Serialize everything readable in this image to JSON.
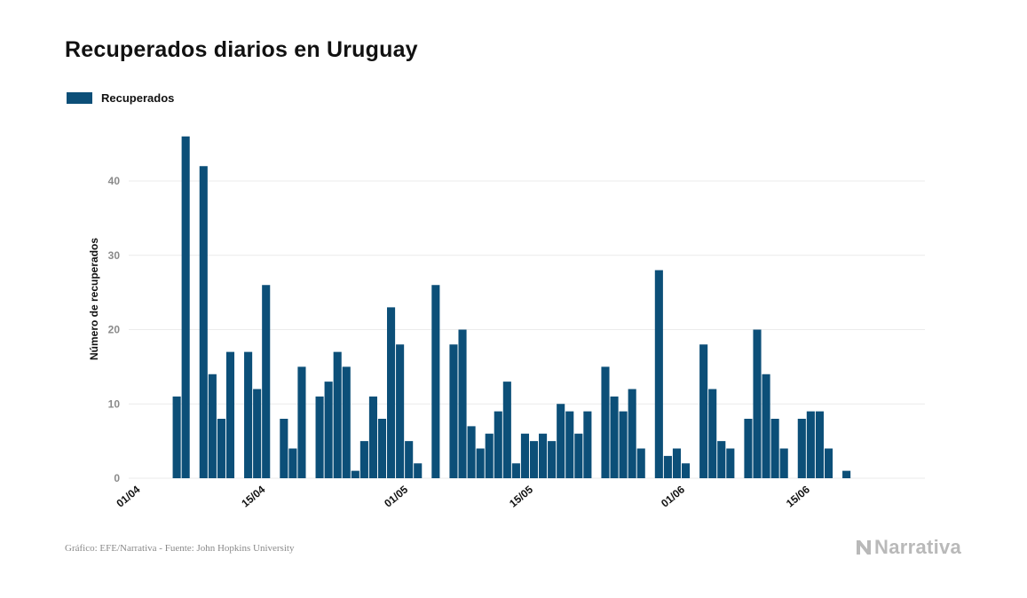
{
  "header": {
    "title": "Recuperados diarios en Uruguay"
  },
  "footer": {
    "source": "Gráfico: EFE/Narrativa - Fuente: John Hopkins University",
    "brand": "Narrativa"
  },
  "brand_icon": "narrativa-logo-icon",
  "colors": {
    "bar": "#0c4f78",
    "grid": "#ebebeb",
    "tick": "#8a8a8a",
    "text": "#111111",
    "brand": "#b9b9b9"
  },
  "chart_data": {
    "type": "bar",
    "title": "Recuperados diarios en Uruguay",
    "xlabel": "",
    "ylabel": "Número de recuperados",
    "ylim": [
      0,
      48
    ],
    "yticks": [
      0,
      10,
      20,
      30,
      40
    ],
    "grid": true,
    "legend": "top-left",
    "start_date": "2020-04-01",
    "xtick_labels": [
      {
        "label": "01/04",
        "day": 0
      },
      {
        "label": "15/04",
        "day": 14
      },
      {
        "label": "01/05",
        "day": 30
      },
      {
        "label": "15/05",
        "day": 44
      },
      {
        "label": "01/06",
        "day": 61
      },
      {
        "label": "15/06",
        "day": 75
      }
    ],
    "series": [
      {
        "name": "Recuperados",
        "values": [
          0,
          11,
          46,
          0,
          42,
          14,
          8,
          17,
          0,
          17,
          12,
          26,
          0,
          8,
          4,
          15,
          0,
          11,
          13,
          17,
          15,
          1,
          5,
          11,
          8,
          23,
          18,
          5,
          2,
          0,
          26,
          0,
          18,
          20,
          7,
          4,
          6,
          9,
          13,
          2,
          6,
          5,
          6,
          5,
          10,
          9,
          6,
          9,
          0,
          15,
          11,
          9,
          12,
          4,
          0,
          28,
          3,
          4,
          2,
          0,
          18,
          12,
          5,
          4,
          0,
          8,
          20,
          14,
          8,
          4,
          0,
          8,
          9,
          9,
          4,
          0,
          1,
          0,
          0,
          0,
          0
        ]
      }
    ]
  }
}
